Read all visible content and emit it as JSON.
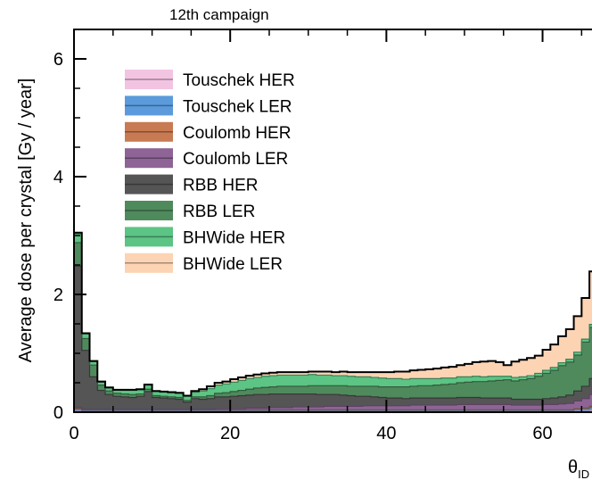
{
  "chart_data": {
    "type": "area",
    "stacked": true,
    "step": true,
    "title": "12th campaign",
    "ylabel": "Average dose per crystal [Gy / year]",
    "xlabel_main": "θ",
    "xlabel_sub": "ID",
    "xlim": [
      0,
      68.5
    ],
    "ylim": [
      0,
      6.5
    ],
    "x_ticks": [
      0,
      20,
      40,
      60
    ],
    "y_ticks": [
      0,
      2,
      4,
      6
    ],
    "legend_position": "top-left",
    "x": [
      0,
      1,
      2,
      3,
      4,
      5,
      6,
      7,
      8,
      9,
      10,
      11,
      12,
      13,
      14,
      15,
      16,
      17,
      18,
      19,
      20,
      21,
      22,
      23,
      24,
      25,
      26,
      27,
      28,
      29,
      30,
      31,
      32,
      33,
      34,
      35,
      36,
      37,
      38,
      39,
      40,
      41,
      42,
      43,
      44,
      45,
      46,
      47,
      48,
      49,
      50,
      51,
      52,
      53,
      54,
      55,
      56,
      57,
      58,
      59,
      60,
      61,
      62,
      63,
      64,
      65,
      66,
      67,
      68
    ],
    "series": [
      {
        "name": "Touschek HER",
        "color": "#f3c4e2",
        "values": [
          0.02,
          0.01,
          0.01,
          0.01,
          0.01,
          0.01,
          0.01,
          0.01,
          0.01,
          0.01,
          0.01,
          0.01,
          0.01,
          0.01,
          0.01,
          0.01,
          0.01,
          0.01,
          0.01,
          0.01,
          0.01,
          0.01,
          0.01,
          0.01,
          0.01,
          0.01,
          0.01,
          0.01,
          0.01,
          0.01,
          0.01,
          0.01,
          0.01,
          0.01,
          0.01,
          0.01,
          0.01,
          0.01,
          0.01,
          0.01,
          0.01,
          0.01,
          0.01,
          0.01,
          0.01,
          0.01,
          0.01,
          0.01,
          0.01,
          0.01,
          0.01,
          0.01,
          0.01,
          0.01,
          0.01,
          0.01,
          0.01,
          0.01,
          0.01,
          0.01,
          0.01,
          0.01,
          0.01,
          0.01,
          0.02,
          0.02,
          0.03,
          0.04,
          0.06
        ]
      },
      {
        "name": "Touschek LER",
        "color": "#5b9bdc",
        "values": [
          0.03,
          0.02,
          0.02,
          0.02,
          0.02,
          0.02,
          0.02,
          0.02,
          0.02,
          0.02,
          0.02,
          0.02,
          0.02,
          0.02,
          0.02,
          0.02,
          0.02,
          0.02,
          0.02,
          0.02,
          0.02,
          0.02,
          0.02,
          0.02,
          0.02,
          0.02,
          0.02,
          0.02,
          0.02,
          0.02,
          0.02,
          0.02,
          0.02,
          0.02,
          0.02,
          0.02,
          0.02,
          0.02,
          0.02,
          0.02,
          0.02,
          0.02,
          0.02,
          0.02,
          0.02,
          0.02,
          0.02,
          0.02,
          0.02,
          0.02,
          0.02,
          0.02,
          0.02,
          0.02,
          0.02,
          0.02,
          0.02,
          0.02,
          0.02,
          0.02,
          0.02,
          0.02,
          0.02,
          0.02,
          0.03,
          0.04,
          0.05,
          0.07,
          0.1
        ]
      },
      {
        "name": "Coulomb HER",
        "color": "#c87a52",
        "values": [
          0.01,
          0.01,
          0.01,
          0.01,
          0.01,
          0.01,
          0.01,
          0.01,
          0.01,
          0.01,
          0.01,
          0.01,
          0.01,
          0.01,
          0.01,
          0.01,
          0.01,
          0.01,
          0.01,
          0.01,
          0.01,
          0.01,
          0.01,
          0.01,
          0.01,
          0.01,
          0.01,
          0.01,
          0.01,
          0.01,
          0.01,
          0.01,
          0.01,
          0.01,
          0.01,
          0.01,
          0.01,
          0.01,
          0.01,
          0.01,
          0.01,
          0.01,
          0.01,
          0.01,
          0.01,
          0.01,
          0.01,
          0.01,
          0.01,
          0.01,
          0.01,
          0.01,
          0.01,
          0.01,
          0.01,
          0.01,
          0.01,
          0.01,
          0.01,
          0.01,
          0.01,
          0.01,
          0.01,
          0.01,
          0.01,
          0.01,
          0.02,
          0.03,
          0.04
        ]
      },
      {
        "name": "Coulomb LER",
        "color": "#8e6496",
        "values": [
          0.02,
          0.01,
          0.01,
          0.01,
          0.01,
          0.01,
          0.01,
          0.01,
          0.01,
          0.01,
          0.01,
          0.01,
          0.01,
          0.01,
          0.01,
          0.01,
          0.01,
          0.01,
          0.02,
          0.02,
          0.02,
          0.02,
          0.03,
          0.03,
          0.03,
          0.04,
          0.04,
          0.04,
          0.05,
          0.05,
          0.05,
          0.05,
          0.06,
          0.06,
          0.06,
          0.06,
          0.06,
          0.07,
          0.07,
          0.07,
          0.07,
          0.07,
          0.07,
          0.08,
          0.08,
          0.08,
          0.08,
          0.08,
          0.08,
          0.09,
          0.09,
          0.09,
          0.09,
          0.09,
          0.09,
          0.09,
          0.08,
          0.08,
          0.08,
          0.08,
          0.09,
          0.09,
          0.1,
          0.11,
          0.13,
          0.16,
          0.2,
          0.25,
          0.3
        ]
      },
      {
        "name": "RBB HER",
        "color": "#555555",
        "values": [
          2.4,
          1.0,
          0.55,
          0.32,
          0.25,
          0.22,
          0.21,
          0.2,
          0.22,
          0.3,
          0.2,
          0.19,
          0.18,
          0.17,
          0.12,
          0.18,
          0.17,
          0.18,
          0.2,
          0.2,
          0.21,
          0.22,
          0.22,
          0.23,
          0.23,
          0.23,
          0.23,
          0.23,
          0.22,
          0.22,
          0.22,
          0.21,
          0.2,
          0.2,
          0.19,
          0.18,
          0.17,
          0.16,
          0.15,
          0.14,
          0.13,
          0.13,
          0.12,
          0.12,
          0.12,
          0.12,
          0.12,
          0.12,
          0.12,
          0.12,
          0.12,
          0.12,
          0.11,
          0.11,
          0.11,
          0.11,
          0.1,
          0.1,
          0.1,
          0.1,
          0.1,
          0.11,
          0.12,
          0.14,
          0.17,
          0.21,
          0.27,
          0.35,
          0.45
        ]
      },
      {
        "name": "RBB LER",
        "color": "#4f8a5c",
        "values": [
          0.4,
          0.2,
          0.2,
          0.09,
          0.06,
          0.05,
          0.05,
          0.05,
          0.04,
          0.04,
          0.03,
          0.03,
          0.03,
          0.03,
          0.03,
          0.03,
          0.04,
          0.05,
          0.06,
          0.07,
          0.08,
          0.09,
          0.1,
          0.11,
          0.12,
          0.12,
          0.13,
          0.13,
          0.13,
          0.13,
          0.14,
          0.15,
          0.15,
          0.15,
          0.16,
          0.16,
          0.17,
          0.17,
          0.18,
          0.18,
          0.19,
          0.19,
          0.2,
          0.2,
          0.21,
          0.21,
          0.22,
          0.23,
          0.24,
          0.25,
          0.26,
          0.27,
          0.28,
          0.29,
          0.3,
          0.31,
          0.31,
          0.33,
          0.35,
          0.39,
          0.43,
          0.47,
          0.53,
          0.56,
          0.61,
          0.75,
          0.87,
          1.15,
          1.7
        ]
      },
      {
        "name": "BHWide HER",
        "color": "#5cc484",
        "values": [
          0.15,
          0.08,
          0.06,
          0.05,
          0.05,
          0.05,
          0.06,
          0.07,
          0.07,
          0.07,
          0.07,
          0.07,
          0.07,
          0.07,
          0.07,
          0.08,
          0.1,
          0.12,
          0.14,
          0.15,
          0.16,
          0.17,
          0.18,
          0.18,
          0.19,
          0.19,
          0.19,
          0.19,
          0.19,
          0.19,
          0.19,
          0.18,
          0.18,
          0.17,
          0.17,
          0.17,
          0.16,
          0.16,
          0.15,
          0.15,
          0.14,
          0.14,
          0.13,
          0.13,
          0.12,
          0.12,
          0.11,
          0.11,
          0.1,
          0.1,
          0.09,
          0.09,
          0.08,
          0.08,
          0.07,
          0.06,
          0.06,
          0.05,
          0.05,
          0.05,
          0.05,
          0.05,
          0.05,
          0.05,
          0.05,
          0.05,
          0.05,
          0.05,
          0.05
        ]
      },
      {
        "name": "BHWide LER",
        "color": "#fcd4b4",
        "values": [
          0.02,
          0.01,
          0.01,
          0.01,
          0.01,
          0.01,
          0.01,
          0.01,
          0.01,
          0.01,
          0.01,
          0.01,
          0.01,
          0.01,
          0.01,
          0.02,
          0.03,
          0.04,
          0.04,
          0.04,
          0.05,
          0.05,
          0.05,
          0.05,
          0.05,
          0.05,
          0.05,
          0.05,
          0.05,
          0.05,
          0.05,
          0.06,
          0.06,
          0.06,
          0.07,
          0.07,
          0.08,
          0.08,
          0.09,
          0.1,
          0.11,
          0.12,
          0.13,
          0.14,
          0.15,
          0.16,
          0.17,
          0.18,
          0.19,
          0.2,
          0.22,
          0.24,
          0.26,
          0.26,
          0.24,
          0.19,
          0.27,
          0.29,
          0.3,
          0.3,
          0.35,
          0.39,
          0.45,
          0.51,
          0.61,
          0.7,
          0.9,
          1.3,
          1.7
        ]
      }
    ]
  }
}
